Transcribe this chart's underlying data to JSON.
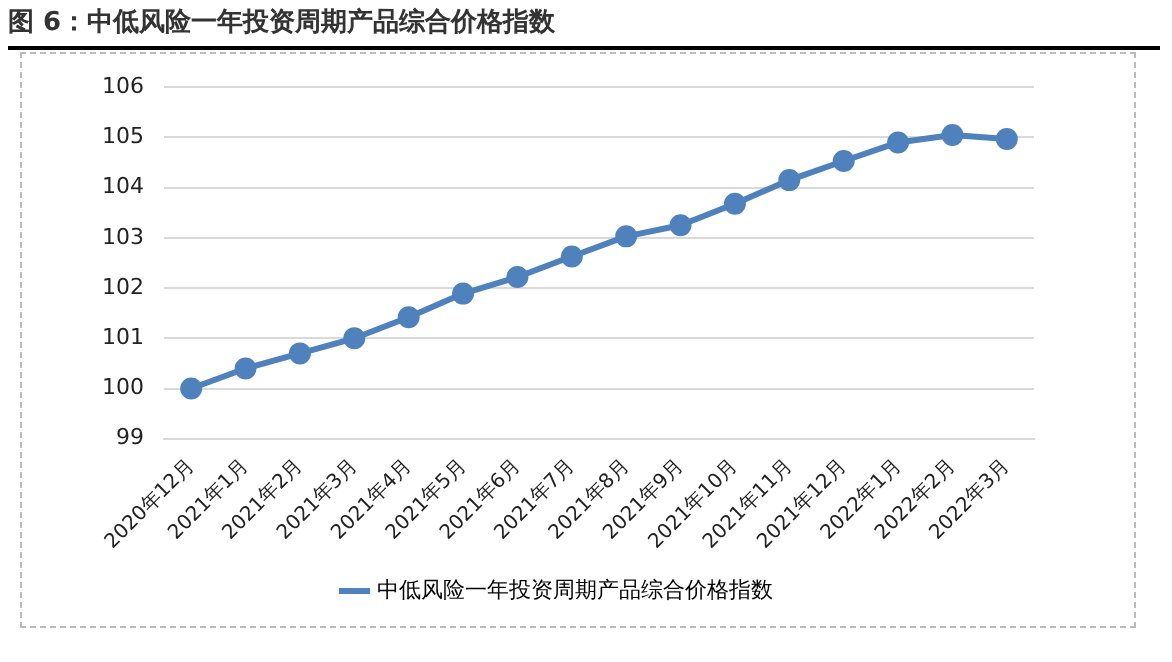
{
  "chart_data": {
    "type": "line",
    "title": "图 6：中低风险一年投资周期产品综合价格指数",
    "categories": [
      "2020年12月",
      "2021年1月",
      "2021年2月",
      "2021年3月",
      "2021年4月",
      "2021年5月",
      "2021年6月",
      "2021年7月",
      "2021年8月",
      "2021年9月",
      "2021年10月",
      "2021年11月",
      "2021年12月",
      "2022年1月",
      "2022年2月",
      "2022年3月"
    ],
    "series": [
      {
        "name": "中低风险一年投资周期产品综合价格指数",
        "color": "#4f81bd",
        "values": [
          100.0,
          100.4,
          100.7,
          101.0,
          101.42,
          101.89,
          102.22,
          102.63,
          103.03,
          103.25,
          103.68,
          104.15,
          104.53,
          104.9,
          105.05,
          104.97
        ]
      }
    ],
    "ylim": [
      99,
      106
    ],
    "yticks": [
      99,
      100,
      101,
      102,
      103,
      104,
      105,
      106
    ],
    "grid": "y",
    "legend": "bottom",
    "marker": "circle",
    "line_style": "solid"
  }
}
